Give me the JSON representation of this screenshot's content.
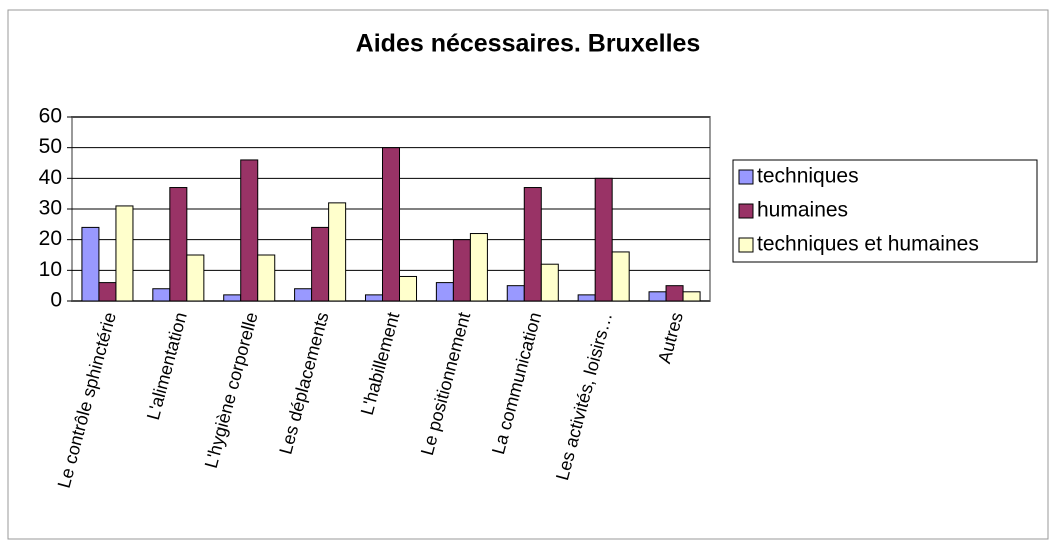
{
  "chart_data": {
    "type": "bar",
    "title": "Aides nécessaires. Bruxelles",
    "categories": [
      "Le contrôle sphinctérie",
      "L'alimentation",
      "L'hygiène corporelle",
      "Les déplacements",
      "L'habillement",
      "Le positionnement",
      "La communication",
      "Les activités, loisirs…",
      "Autres"
    ],
    "series": [
      {
        "name": "techniques",
        "color": "#9999ff",
        "values": [
          24,
          4,
          2,
          4,
          2,
          6,
          5,
          2,
          3
        ]
      },
      {
        "name": "humaines",
        "color": "#993366",
        "values": [
          6,
          37,
          46,
          24,
          50,
          20,
          37,
          40,
          5
        ]
      },
      {
        "name": "techniques et humaines",
        "color": "#ffffcc",
        "values": [
          31,
          15,
          15,
          32,
          8,
          22,
          12,
          16,
          3
        ]
      }
    ],
    "ylim": [
      0,
      60
    ],
    "yticks": [
      0,
      10,
      20,
      30,
      40,
      50,
      60
    ],
    "grid": true,
    "legend": "right"
  }
}
